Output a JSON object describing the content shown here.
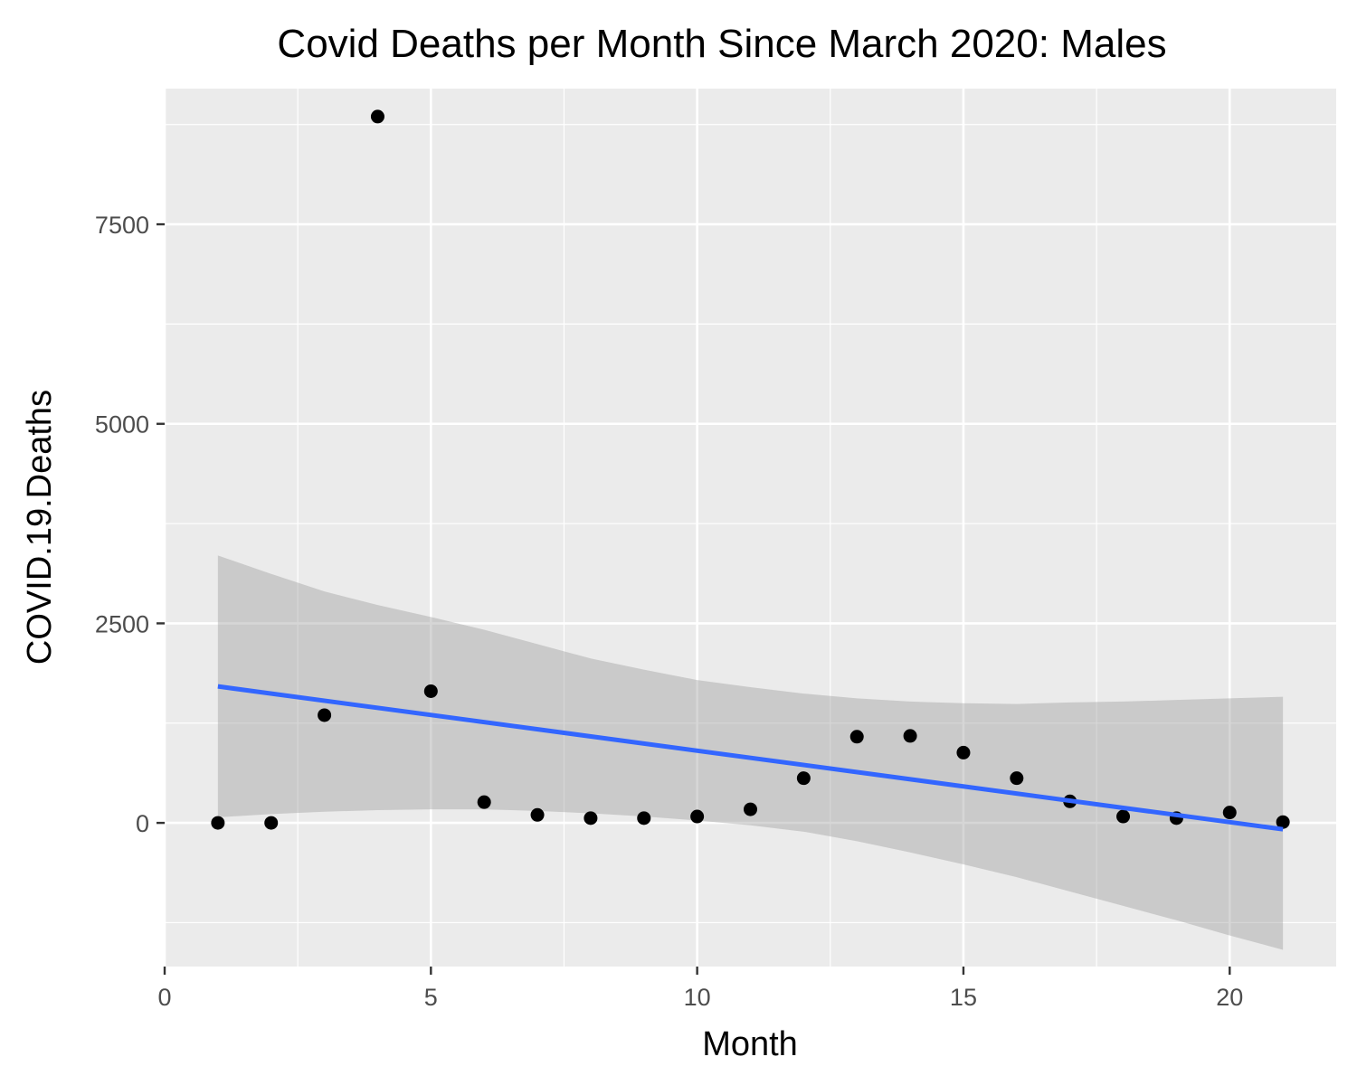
{
  "chart_data": {
    "type": "scatter",
    "title": "Covid Deaths per Month Since March 2020: Males",
    "xlabel": "Month",
    "ylabel": "COVID.19.Deaths",
    "xlim": [
      0,
      22
    ],
    "ylim": [
      -1800,
      9200
    ],
    "x_ticks": [
      0,
      5,
      10,
      15,
      20
    ],
    "y_ticks": [
      0,
      2500,
      5000,
      7500
    ],
    "grid": true,
    "colors": {
      "panel": "#ebebeb",
      "grid": "#ffffff",
      "points": "#000000",
      "trend": "#3366ff",
      "ribbon": "#999999"
    },
    "series": [
      {
        "x": [
          1,
          2,
          3,
          4,
          5,
          6,
          7,
          8,
          9,
          10,
          11,
          12,
          13,
          14,
          15,
          16,
          17,
          18,
          19,
          20,
          21
        ],
        "y": [
          0,
          0,
          1350,
          8850,
          1650,
          260,
          100,
          60,
          60,
          80,
          170,
          560,
          1080,
          1090,
          880,
          560,
          270,
          80,
          60,
          130,
          10
        ]
      }
    ],
    "trend_line": {
      "x": [
        1,
        21
      ],
      "y": [
        1710,
        -80
      ]
    },
    "confidence_band": {
      "x": [
        1,
        2,
        3,
        4,
        5,
        6,
        7,
        8,
        9,
        10,
        11,
        12,
        13,
        14,
        15,
        16,
        17,
        18,
        19,
        20,
        21
      ],
      "lower": [
        70,
        110,
        140,
        160,
        170,
        170,
        150,
        120,
        80,
        30,
        -30,
        -110,
        -230,
        -370,
        -520,
        -680,
        -860,
        -1040,
        -1220,
        -1410,
        -1590
      ],
      "upper": [
        3350,
        3120,
        2900,
        2730,
        2580,
        2420,
        2240,
        2060,
        1920,
        1790,
        1700,
        1620,
        1560,
        1520,
        1500,
        1490,
        1510,
        1520,
        1540,
        1560,
        1580
      ]
    }
  }
}
